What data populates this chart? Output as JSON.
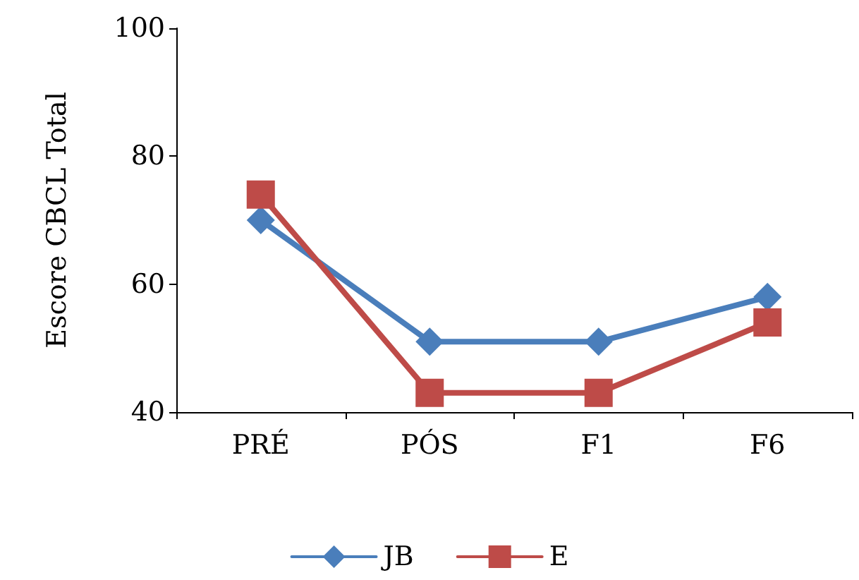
{
  "chart_data": {
    "type": "line",
    "ylabel": "Escore CBCL Total",
    "categories": [
      "PRÉ",
      "PÓS",
      "F1",
      "F6"
    ],
    "series": [
      {
        "name": "JB",
        "color": "#4a7ebb",
        "marker": "diamond",
        "values": [
          70,
          51,
          51,
          58
        ]
      },
      {
        "name": "E",
        "color": "#be4b48",
        "marker": "square",
        "values": [
          74,
          43,
          43,
          54
        ]
      }
    ],
    "ylim": [
      40,
      100
    ],
    "yticks": [
      40,
      60,
      80,
      100
    ],
    "grid": false,
    "legend": "bottom",
    "line_style": "solid"
  }
}
